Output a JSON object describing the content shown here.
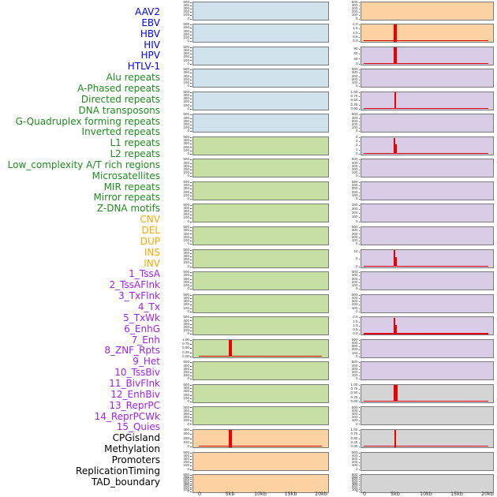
{
  "chart_data": {
    "type": "line",
    "description": "Two-column multi-track figure: red signal density around a 5kb anchor, x axis 0-20kb, one small panel per genomic feature",
    "x_tick_labels": [
      "0",
      "5kb",
      "10kb",
      "15kb",
      "20kb"
    ],
    "x_range_kb": [
      0,
      20
    ],
    "spike_position_kb": 5,
    "group_styles": {
      "virus": {
        "label_color": "#0000ee",
        "panel_bg": "#cfe2ec"
      },
      "repeat": {
        "label_color": "#1e8b1e",
        "panel_bg": "#c6dfa3"
      },
      "sv": {
        "label_color": "#ffa500",
        "panel_bg": "#fdd2a3"
      },
      "chromhmm": {
        "label_color": "#a020f0",
        "panel_bg": "#d8cce6"
      },
      "other": {
        "label_color": "#000000",
        "panel_bg": "#d4d4d4"
      }
    },
    "panel_border_color": "#7a7a7a",
    "signal_color": "#ee0000",
    "rows": [
      {
        "label": "AAV2",
        "group": "virus",
        "yticks": [
          "500",
          "400",
          "300",
          "200",
          "100",
          "0"
        ],
        "spike": null,
        "baseline": false
      },
      {
        "label": "EBV",
        "group": "virus",
        "yticks": [
          "500",
          "400",
          "300",
          "200",
          "100",
          "0"
        ],
        "spike": null,
        "baseline": false
      },
      {
        "label": "HBV",
        "group": "virus",
        "yticks": [
          "500",
          "400",
          "300",
          "200",
          "100",
          "0"
        ],
        "spike": null,
        "baseline": false
      },
      {
        "label": "HIV",
        "group": "virus",
        "yticks": [
          "500",
          "400",
          "300",
          "200",
          "100",
          "0"
        ],
        "spike": null,
        "baseline": false
      },
      {
        "label": "HPV",
        "group": "virus",
        "yticks": [
          "500",
          "400",
          "300",
          "200",
          "100",
          "0"
        ],
        "spike": null,
        "baseline": false
      },
      {
        "label": "HTLV-1",
        "group": "virus",
        "yticks": [
          "500",
          "400",
          "300",
          "200",
          "100",
          "0"
        ],
        "spike": null,
        "baseline": false
      },
      {
        "label": "Alu repeats",
        "group": "repeat",
        "yticks": [
          "500",
          "400",
          "300",
          "200",
          "100",
          "0"
        ],
        "spike": null,
        "baseline": false
      },
      {
        "label": "A-Phased repeats",
        "group": "repeat",
        "yticks": [
          "500",
          "400",
          "300",
          "200",
          "100",
          "0"
        ],
        "spike": null,
        "baseline": false
      },
      {
        "label": "Directed repeats",
        "group": "repeat",
        "yticks": [
          "500",
          "400",
          "300",
          "200",
          "100",
          "0"
        ],
        "spike": null,
        "baseline": false
      },
      {
        "label": "DNA transposons",
        "group": "repeat",
        "yticks": [
          "500",
          "400",
          "300",
          "200",
          "100",
          "0"
        ],
        "spike": null,
        "baseline": false
      },
      {
        "label": "G-Quadruplex forming repeats",
        "group": "repeat",
        "yticks": [
          "500",
          "400",
          "300",
          "200",
          "100",
          "0"
        ],
        "spike": null,
        "baseline": false
      },
      {
        "label": "Inverted repeats",
        "group": "repeat",
        "yticks": [
          "500",
          "400",
          "300",
          "200",
          "100",
          "0"
        ],
        "spike": null,
        "baseline": false
      },
      {
        "label": "L1 repeats",
        "group": "repeat",
        "yticks": [
          "500",
          "400",
          "300",
          "200",
          "100",
          "0"
        ],
        "spike": null,
        "baseline": false
      },
      {
        "label": "L2 repeats",
        "group": "repeat",
        "yticks": [
          "500",
          "400",
          "300",
          "200",
          "100",
          "0"
        ],
        "spike": null,
        "baseline": false
      },
      {
        "label": "Low_complexity A/T rich regions",
        "group": "repeat",
        "yticks": [
          "500",
          "400",
          "300",
          "200",
          "100",
          "0"
        ],
        "spike": null,
        "baseline": false
      },
      {
        "label": "Microsatellites",
        "group": "repeat",
        "yticks": [
          "1.00",
          "0.75",
          "0.50",
          "0.25",
          "0.00"
        ],
        "spike": {
          "shape": "full",
          "width": 4,
          "height_frac": 1.0
        },
        "baseline": true
      },
      {
        "label": "MIR repeats",
        "group": "repeat",
        "yticks": [
          "500",
          "400",
          "300",
          "200",
          "100",
          "0"
        ],
        "spike": null,
        "baseline": false
      },
      {
        "label": "Mirror repeats",
        "group": "repeat",
        "yticks": [
          "500",
          "400",
          "300",
          "200",
          "100",
          "0"
        ],
        "spike": null,
        "baseline": false
      },
      {
        "label": "Z-DNA motifs",
        "group": "repeat",
        "yticks": [
          "500",
          "400",
          "300",
          "200",
          "100",
          "0"
        ],
        "spike": null,
        "baseline": false
      },
      {
        "label": "CNV",
        "group": "sv",
        "yticks": [
          "400",
          "300",
          "200",
          "100",
          "0"
        ],
        "spike": {
          "shape": "full",
          "width": 4,
          "height_frac": 1.0
        },
        "baseline": true
      },
      {
        "label": "DEL",
        "group": "sv",
        "yticks": [
          "500",
          "400",
          "300",
          "200",
          "100",
          "0"
        ],
        "spike": null,
        "baseline": false
      },
      {
        "label": "DUP",
        "group": "sv",
        "yticks": [
          "800",
          "700",
          "600",
          "500",
          "400",
          "300",
          "200",
          "100",
          "0"
        ],
        "spike": null,
        "baseline": false
      },
      {
        "label": "INS",
        "group": "sv",
        "yticks": [
          "500",
          "400",
          "300",
          "200",
          "100",
          "0"
        ],
        "spike": null,
        "baseline": false
      },
      {
        "label": "INV",
        "group": "sv",
        "yticks": [
          "2.0",
          "1.5",
          "1.0",
          "0.5",
          "0.0"
        ],
        "spike": {
          "shape": "full",
          "width": 4,
          "height_frac": 1.0
        },
        "baseline": true
      },
      {
        "label": "1_TssA",
        "group": "chromhmm",
        "yticks": [
          "90",
          "60",
          "30",
          "0"
        ],
        "spike": {
          "shape": "full",
          "width": 4,
          "height_frac": 1.0
        },
        "baseline": true
      },
      {
        "label": "2_TssAFlnk",
        "group": "chromhmm",
        "yticks": [
          "500",
          "400",
          "300",
          "200",
          "100",
          "0"
        ],
        "spike": null,
        "baseline": false
      },
      {
        "label": "3_TxFlnk",
        "group": "chromhmm",
        "yticks": [
          "1.00",
          "0.75",
          "0.50",
          "0.25",
          "0.00"
        ],
        "spike": {
          "shape": "full",
          "width": 2,
          "height_frac": 1.0
        },
        "baseline": true
      },
      {
        "label": "4_Tx",
        "group": "chromhmm",
        "yticks": [
          "500",
          "400",
          "300",
          "200",
          "100",
          "0"
        ],
        "spike": null,
        "baseline": false
      },
      {
        "label": "5_TxWk",
        "group": "chromhmm",
        "yticks": [
          "4",
          "3",
          "2",
          "1",
          "0"
        ],
        "spike": {
          "shape": "step",
          "width": 4,
          "height_frac": 1.0
        },
        "baseline": true
      },
      {
        "label": "6_EnhG",
        "group": "chromhmm",
        "yticks": [
          "500",
          "400",
          "300",
          "200",
          "100",
          "0"
        ],
        "spike": null,
        "baseline": false
      },
      {
        "label": "7_Enh",
        "group": "chromhmm",
        "yticks": [
          "500",
          "400",
          "300",
          "200",
          "100",
          "0"
        ],
        "spike": null,
        "baseline": false
      },
      {
        "label": "8_ZNF_Rpts",
        "group": "chromhmm",
        "yticks": [
          "400",
          "300",
          "200",
          "100",
          "0"
        ],
        "spike": null,
        "baseline": false
      },
      {
        "label": "9_Het",
        "group": "chromhmm",
        "yticks": [
          "500",
          "400",
          "300",
          "200",
          "100",
          "0"
        ],
        "spike": null,
        "baseline": false
      },
      {
        "label": "10_TssBiv",
        "group": "chromhmm",
        "yticks": [
          "10",
          "5",
          "0"
        ],
        "spike": {
          "shape": "step",
          "width": 4,
          "height_frac": 1.0
        },
        "baseline": true
      },
      {
        "label": "11_BivFlnk",
        "group": "chromhmm",
        "yticks": [
          "500",
          "400",
          "300",
          "200",
          "100",
          "0"
        ],
        "spike": null,
        "baseline": false
      },
      {
        "label": "12_EnhBiv",
        "group": "chromhmm",
        "yticks": [
          "500",
          "400",
          "300",
          "200",
          "100",
          "0"
        ],
        "spike": null,
        "baseline": false
      },
      {
        "label": "13_ReprPC",
        "group": "chromhmm",
        "yticks": [
          "2.0",
          "1.5",
          "1.0",
          "0.5",
          "0.0"
        ],
        "spike": {
          "shape": "step",
          "width": 4,
          "height_frac": 1.0
        },
        "baseline": true
      },
      {
        "label": "14_ReprPCWk",
        "group": "chromhmm",
        "yticks": [
          "500",
          "400",
          "300",
          "200",
          "100",
          "0"
        ],
        "spike": null,
        "baseline": false
      },
      {
        "label": "15_Quies",
        "group": "chromhmm",
        "yticks": [
          "500",
          "400",
          "300",
          "200",
          "100",
          "0"
        ],
        "spike": null,
        "baseline": false
      },
      {
        "label": "CPGisland",
        "group": "other",
        "yticks": [
          "1.00",
          "0.75",
          "0.50",
          "0.25",
          "0.00"
        ],
        "spike": {
          "shape": "full",
          "width": 5,
          "height_frac": 1.0
        },
        "baseline": true
      },
      {
        "label": "Methylation",
        "group": "other",
        "yticks": [
          "500",
          "400",
          "300",
          "200",
          "100",
          "0"
        ],
        "spike": null,
        "baseline": false
      },
      {
        "label": "Promoters",
        "group": "other",
        "yticks": [
          "1.00",
          "0.75",
          "0.50",
          "0.25",
          "0.00"
        ],
        "spike": {
          "shape": "full",
          "width": 2,
          "height_frac": 1.0
        },
        "baseline": true
      },
      {
        "label": "ReplicationTiming",
        "group": "other",
        "yticks": [
          "500",
          "400",
          "300",
          "200",
          "100",
          "0"
        ],
        "spike": null,
        "baseline": false
      },
      {
        "label": "TAD_boundary",
        "group": "other",
        "yticks": [
          "800",
          "700",
          "600",
          "500",
          "400",
          "300",
          "200",
          "100",
          "0"
        ],
        "spike": null,
        "baseline": false
      }
    ]
  }
}
